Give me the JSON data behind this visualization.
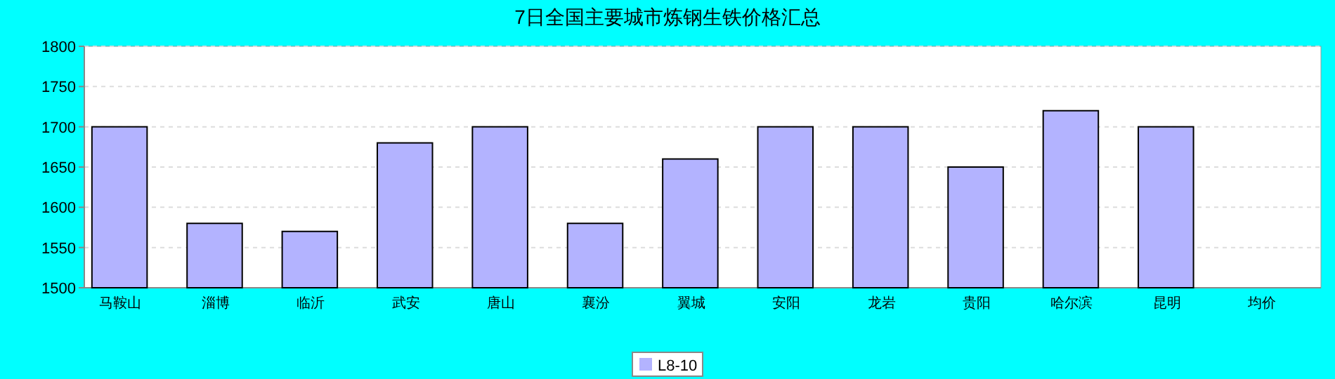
{
  "chart_data": {
    "type": "bar",
    "title": "7日全国主要城市炼钢生铁价格汇总",
    "categories": [
      "马鞍山",
      "淄博",
      "临沂",
      "武安",
      "唐山",
      "襄汾",
      "翼城",
      "安阳",
      "龙岩",
      "贵阳",
      "哈尔滨",
      "昆明",
      "均价"
    ],
    "series": [
      {
        "name": "L8-10",
        "color": "#b3b3ff",
        "values": [
          1700,
          1580,
          1570,
          1680,
          1700,
          1580,
          1660,
          1700,
          1700,
          1650,
          1720,
          1700,
          null
        ]
      }
    ],
    "ylim": [
      1500,
      1800
    ],
    "yticks": [
      1500,
      1550,
      1600,
      1650,
      1700,
      1750,
      1800
    ],
    "grid": "y",
    "legend": "bottom"
  }
}
